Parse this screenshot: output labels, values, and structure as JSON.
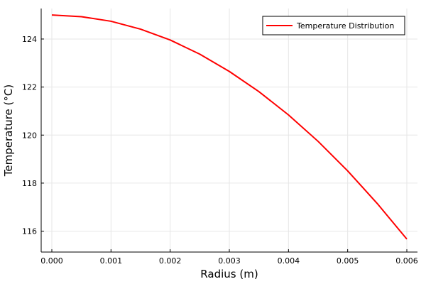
{
  "chart_data": {
    "type": "line",
    "title": "",
    "xlabel": "Radius (m)",
    "ylabel": "Temperature (°C)",
    "xlim": [
      -0.00018,
      0.00618
    ],
    "ylim": [
      115.13,
      125.27
    ],
    "xticks": [
      0.0,
      0.001,
      0.002,
      0.003,
      0.004,
      0.005,
      0.006
    ],
    "xtick_labels": [
      "0.000",
      "0.001",
      "0.002",
      "0.003",
      "0.004",
      "0.005",
      "0.006"
    ],
    "yticks": [
      116,
      118,
      120,
      122,
      124
    ],
    "ytick_labels": [
      "116",
      "118",
      "120",
      "122",
      "124"
    ],
    "grid": true,
    "legend_position": "top-right",
    "series": [
      {
        "name": "Temperature Distribution",
        "color": "#ff0000",
        "x": [
          0.0,
          0.0005,
          0.001,
          0.0015,
          0.002,
          0.0025,
          0.003,
          0.0035,
          0.004,
          0.0045,
          0.005,
          0.0055,
          0.006
        ],
        "y": [
          125.0,
          124.93,
          124.74,
          124.41,
          123.96,
          123.37,
          122.65,
          121.81,
          120.84,
          119.74,
          118.51,
          117.15,
          115.67
        ]
      }
    ]
  }
}
